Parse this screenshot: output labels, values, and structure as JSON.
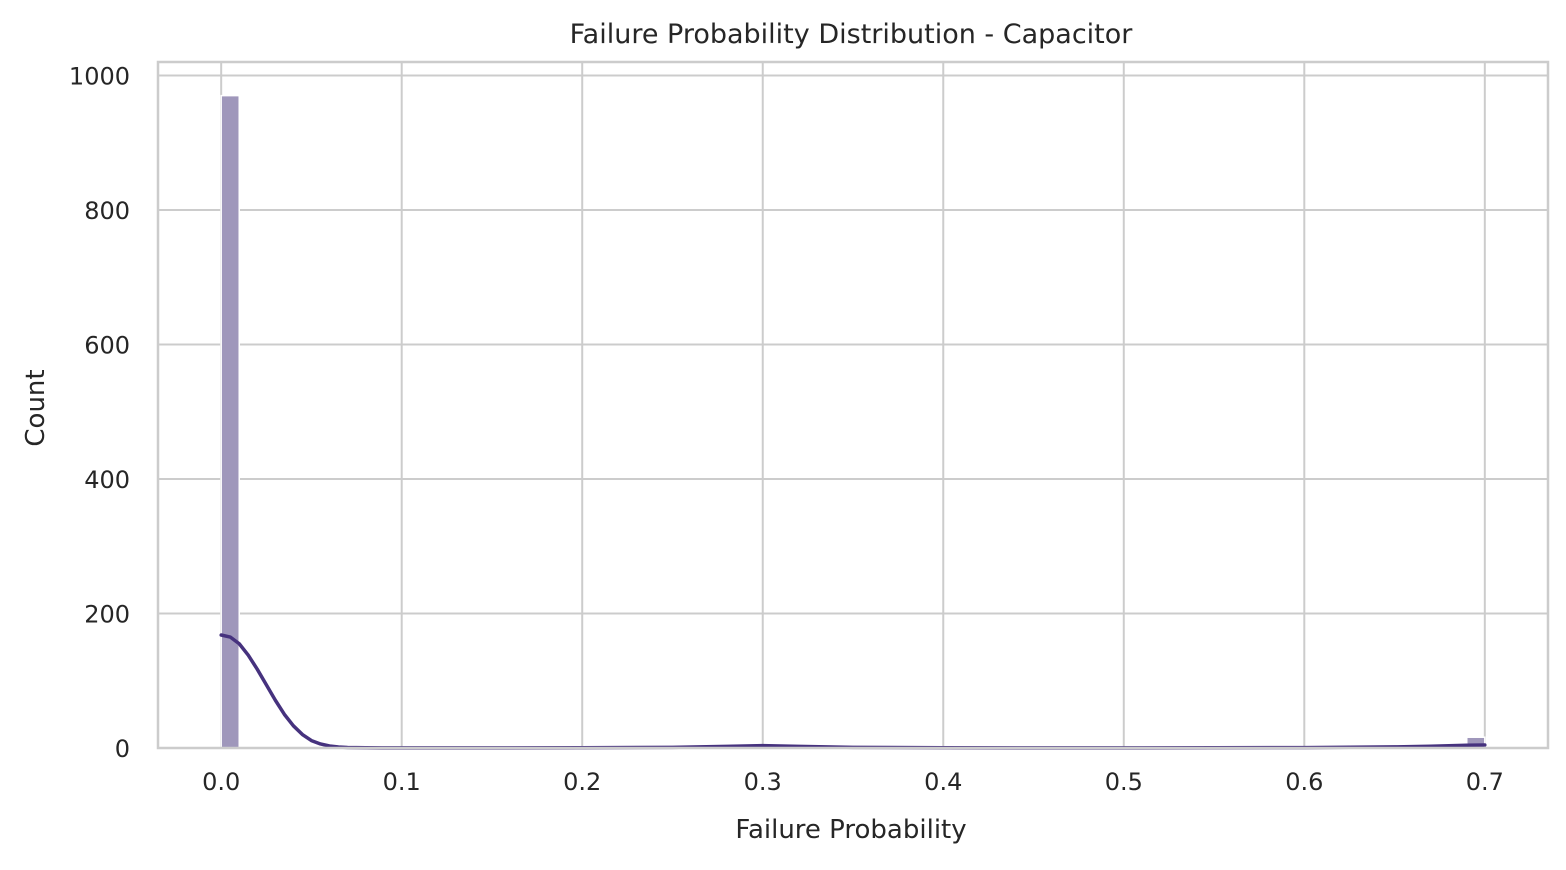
{
  "chart_data": {
    "type": "histogram",
    "title": "Failure Probability Distribution - Capacitor",
    "xlabel": "Failure Probability",
    "ylabel": "Count",
    "xlim": [
      -0.035,
      0.735
    ],
    "ylim": [
      0,
      1020
    ],
    "xticks": [
      0.0,
      0.1,
      0.2,
      0.3,
      0.4,
      0.5,
      0.6,
      0.7
    ],
    "xtick_labels": [
      "0.0",
      "0.1",
      "0.2",
      "0.3",
      "0.4",
      "0.5",
      "0.6",
      "0.7"
    ],
    "yticks": [
      0,
      200,
      400,
      600,
      800,
      1000
    ],
    "ytick_labels": [
      "0",
      "200",
      "400",
      "600",
      "800",
      "1000"
    ],
    "grid": true,
    "bins": [
      {
        "x0": 0.0,
        "x1": 0.01,
        "count": 970
      },
      {
        "x0": 0.69,
        "x1": 0.7,
        "count": 16
      }
    ],
    "kde": {
      "x": [
        0.0,
        0.005,
        0.01,
        0.015,
        0.02,
        0.025,
        0.03,
        0.035,
        0.04,
        0.045,
        0.05,
        0.055,
        0.06,
        0.065,
        0.07,
        0.08,
        0.09,
        0.1,
        0.15,
        0.2,
        0.25,
        0.28,
        0.3,
        0.32,
        0.35,
        0.4,
        0.45,
        0.5,
        0.55,
        0.6,
        0.65,
        0.67,
        0.69,
        0.7
      ],
      "y": [
        168,
        165,
        155,
        138,
        117,
        94,
        71,
        50,
        33,
        20,
        11,
        6,
        3,
        1.5,
        0.8,
        0.4,
        0.2,
        0.2,
        0.2,
        0.3,
        1,
        2.5,
        3.5,
        2.5,
        1,
        0.3,
        0.2,
        0.2,
        0.3,
        0.6,
        1.6,
        2.6,
        4,
        4.5
      ]
    },
    "colors": {
      "bar_fill": "#9f97bb",
      "bar_edge": "#ffffff",
      "kde_line": "#46327e",
      "grid": "#cccccc",
      "spine": "#cccccc"
    }
  }
}
